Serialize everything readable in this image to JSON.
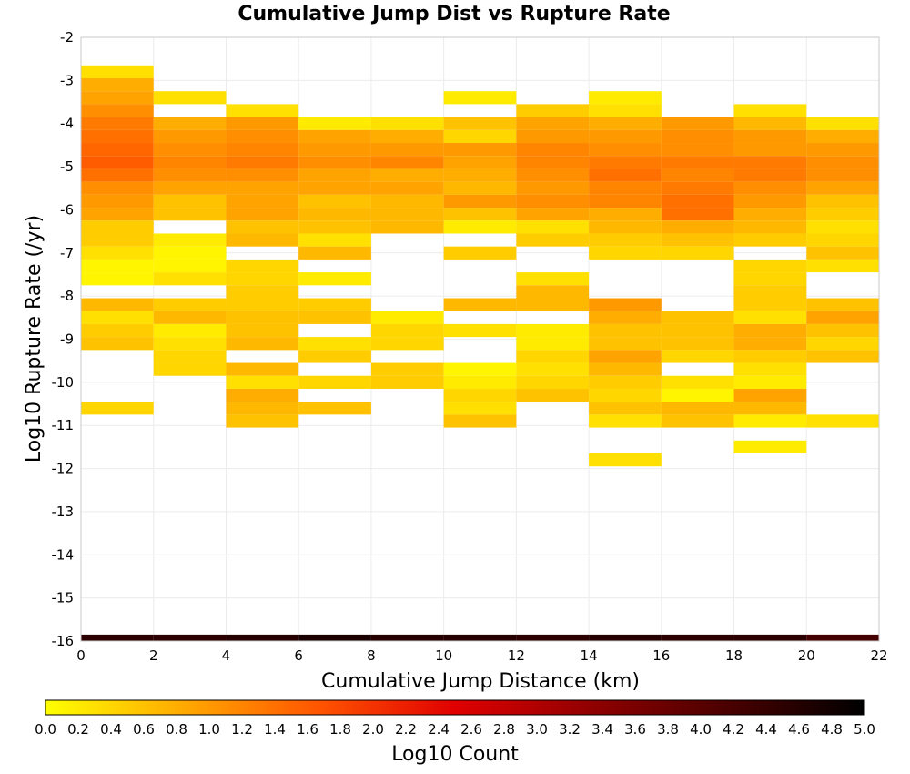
{
  "chart_data": {
    "type": "heatmap",
    "title": "Cumulative Jump Dist vs Rupture Rate",
    "xlabel": "Cumulative Jump Distance (km)",
    "ylabel": "Log10 Rupture Rate (/yr)",
    "colorbar_label": "Log10 Count",
    "xlim": [
      0,
      22
    ],
    "ylim": [
      -16,
      -2
    ],
    "x_ticks": [
      "0",
      "2",
      "4",
      "6",
      "8",
      "10",
      "12",
      "14",
      "16",
      "18",
      "20",
      "22"
    ],
    "y_ticks": [
      "-2",
      "-3",
      "-4",
      "-5",
      "-6",
      "-7",
      "-8",
      "-9",
      "-10",
      "-11",
      "-12",
      "-13",
      "-14",
      "-15",
      "-16"
    ],
    "colorbar_ticks": [
      "0.0",
      "0.2",
      "0.4",
      "0.6",
      "0.8",
      "1.0",
      "1.2",
      "1.4",
      "1.6",
      "1.8",
      "2.0",
      "2.2",
      "2.4",
      "2.6",
      "2.8",
      "3.0",
      "3.2",
      "3.4",
      "3.6",
      "3.8",
      "4.0",
      "4.2",
      "4.4",
      "4.6",
      "4.8",
      "5.0"
    ],
    "colorbar_range": [
      0,
      5
    ],
    "colormap": [
      "#ffff00",
      "#ffaa00",
      "#ff5500",
      "#e00000",
      "#900000",
      "#4a0000",
      "#000000"
    ],
    "grid": true,
    "x_bin_width": 2,
    "y_bin_height": 0.3,
    "columns": [
      {
        "x_start": 0,
        "cells": [
          {
            "y": -2.8,
            "v": 0.3
          },
          {
            "y": -3.1,
            "v": 0.8
          },
          {
            "y": -3.4,
            "v": 0.9
          },
          {
            "y": -3.7,
            "v": 1.1
          },
          {
            "y": -4.0,
            "v": 1.3
          },
          {
            "y": -4.3,
            "v": 1.4
          },
          {
            "y": -4.6,
            "v": 1.5
          },
          {
            "y": -4.9,
            "v": 1.6
          },
          {
            "y": -5.2,
            "v": 1.4
          },
          {
            "y": -5.5,
            "v": 1.1
          },
          {
            "y": -5.8,
            "v": 1.0
          },
          {
            "y": -6.1,
            "v": 0.9
          },
          {
            "y": -6.4,
            "v": 0.5
          },
          {
            "y": -6.7,
            "v": 0.5
          },
          {
            "y": -7.0,
            "v": 0.3
          },
          {
            "y": -7.3,
            "v": 0.1
          },
          {
            "y": -7.6,
            "v": 0.1
          },
          {
            "y": -8.2,
            "v": 0.7
          },
          {
            "y": -8.5,
            "v": 0.3
          },
          {
            "y": -8.8,
            "v": 0.5
          },
          {
            "y": -9.1,
            "v": 0.6
          },
          {
            "y": -10.6,
            "v": 0.4
          }
        ]
      },
      {
        "x_start": 2,
        "cells": [
          {
            "y": -3.4,
            "v": 0.3
          },
          {
            "y": -4.0,
            "v": 0.8
          },
          {
            "y": -4.3,
            "v": 1.0
          },
          {
            "y": -4.6,
            "v": 1.1
          },
          {
            "y": -4.9,
            "v": 1.2
          },
          {
            "y": -5.2,
            "v": 1.1
          },
          {
            "y": -5.5,
            "v": 0.9
          },
          {
            "y": -5.8,
            "v": 0.6
          },
          {
            "y": -6.1,
            "v": 0.6
          },
          {
            "y": -6.7,
            "v": 0.2
          },
          {
            "y": -7.0,
            "v": 0.1
          },
          {
            "y": -7.3,
            "v": 0.1
          },
          {
            "y": -7.6,
            "v": 0.3
          },
          {
            "y": -8.2,
            "v": 0.5
          },
          {
            "y": -8.5,
            "v": 0.7
          },
          {
            "y": -8.8,
            "v": 0.2
          },
          {
            "y": -9.1,
            "v": 0.3
          },
          {
            "y": -9.4,
            "v": 0.4
          },
          {
            "y": -9.7,
            "v": 0.4
          }
        ]
      },
      {
        "x_start": 4,
        "cells": [
          {
            "y": -3.7,
            "v": 0.3
          },
          {
            "y": -4.0,
            "v": 1.0
          },
          {
            "y": -4.3,
            "v": 1.1
          },
          {
            "y": -4.6,
            "v": 1.2
          },
          {
            "y": -4.9,
            "v": 1.3
          },
          {
            "y": -5.2,
            "v": 1.1
          },
          {
            "y": -5.5,
            "v": 0.9
          },
          {
            "y": -5.8,
            "v": 0.9
          },
          {
            "y": -6.1,
            "v": 0.9
          },
          {
            "y": -6.4,
            "v": 0.6
          },
          {
            "y": -6.7,
            "v": 0.7
          },
          {
            "y": -7.3,
            "v": 0.4
          },
          {
            "y": -7.6,
            "v": 0.4
          },
          {
            "y": -7.9,
            "v": 0.5
          },
          {
            "y": -8.2,
            "v": 0.5
          },
          {
            "y": -8.5,
            "v": 0.6
          },
          {
            "y": -8.8,
            "v": 0.6
          },
          {
            "y": -9.1,
            "v": 0.7
          },
          {
            "y": -9.7,
            "v": 0.7
          },
          {
            "y": -10.0,
            "v": 0.3
          },
          {
            "y": -10.3,
            "v": 0.8
          },
          {
            "y": -10.6,
            "v": 0.7
          },
          {
            "y": -10.9,
            "v": 0.6
          }
        ]
      },
      {
        "x_start": 6,
        "cells": [
          {
            "y": -4.0,
            "v": 0.2
          },
          {
            "y": -4.3,
            "v": 0.9
          },
          {
            "y": -4.6,
            "v": 1.0
          },
          {
            "y": -4.9,
            "v": 1.1
          },
          {
            "y": -5.2,
            "v": 0.9
          },
          {
            "y": -5.5,
            "v": 0.9
          },
          {
            "y": -5.8,
            "v": 0.6
          },
          {
            "y": -6.1,
            "v": 0.7
          },
          {
            "y": -6.4,
            "v": 0.6
          },
          {
            "y": -6.7,
            "v": 0.3
          },
          {
            "y": -7.0,
            "v": 0.7
          },
          {
            "y": -7.6,
            "v": 0.2
          },
          {
            "y": -8.2,
            "v": 0.5
          },
          {
            "y": -8.5,
            "v": 0.6
          },
          {
            "y": -9.1,
            "v": 0.3
          },
          {
            "y": -9.4,
            "v": 0.5
          },
          {
            "y": -10.0,
            "v": 0.4
          },
          {
            "y": -10.6,
            "v": 0.6
          }
        ]
      },
      {
        "x_start": 8,
        "cells": [
          {
            "y": -4.0,
            "v": 0.3
          },
          {
            "y": -4.3,
            "v": 0.8
          },
          {
            "y": -4.6,
            "v": 1.0
          },
          {
            "y": -4.9,
            "v": 1.2
          },
          {
            "y": -5.2,
            "v": 0.8
          },
          {
            "y": -5.5,
            "v": 0.9
          },
          {
            "y": -5.8,
            "v": 0.7
          },
          {
            "y": -6.1,
            "v": 0.7
          },
          {
            "y": -6.4,
            "v": 0.7
          },
          {
            "y": -8.5,
            "v": 0.2
          },
          {
            "y": -8.8,
            "v": 0.4
          },
          {
            "y": -9.1,
            "v": 0.4
          },
          {
            "y": -9.7,
            "v": 0.5
          },
          {
            "y": -10.0,
            "v": 0.5
          }
        ]
      },
      {
        "x_start": 10,
        "cells": [
          {
            "y": -3.4,
            "v": 0.2
          },
          {
            "y": -4.0,
            "v": 0.6
          },
          {
            "y": -4.3,
            "v": 0.4
          },
          {
            "y": -4.6,
            "v": 1.0
          },
          {
            "y": -4.9,
            "v": 0.9
          },
          {
            "y": -5.2,
            "v": 0.8
          },
          {
            "y": -5.5,
            "v": 0.7
          },
          {
            "y": -5.8,
            "v": 1.0
          },
          {
            "y": -6.1,
            "v": 0.6
          },
          {
            "y": -6.4,
            "v": 0.2
          },
          {
            "y": -7.0,
            "v": 0.5
          },
          {
            "y": -8.2,
            "v": 0.7
          },
          {
            "y": -8.8,
            "v": 0.3
          },
          {
            "y": -9.7,
            "v": 0.1
          },
          {
            "y": -10.0,
            "v": 0.2
          },
          {
            "y": -10.3,
            "v": 0.4
          },
          {
            "y": -10.6,
            "v": 0.3
          },
          {
            "y": -10.9,
            "v": 0.6
          }
        ]
      },
      {
        "x_start": 12,
        "cells": [
          {
            "y": -3.7,
            "v": 0.5
          },
          {
            "y": -4.0,
            "v": 0.9
          },
          {
            "y": -4.3,
            "v": 1.0
          },
          {
            "y": -4.6,
            "v": 1.2
          },
          {
            "y": -4.9,
            "v": 1.2
          },
          {
            "y": -5.2,
            "v": 1.1
          },
          {
            "y": -5.5,
            "v": 1.0
          },
          {
            "y": -5.8,
            "v": 1.1
          },
          {
            "y": -6.1,
            "v": 0.9
          },
          {
            "y": -6.4,
            "v": 0.3
          },
          {
            "y": -6.7,
            "v": 0.5
          },
          {
            "y": -7.6,
            "v": 0.3
          },
          {
            "y": -7.9,
            "v": 0.7
          },
          {
            "y": -8.2,
            "v": 0.7
          },
          {
            "y": -8.8,
            "v": 0.2
          },
          {
            "y": -9.1,
            "v": 0.2
          },
          {
            "y": -9.4,
            "v": 0.4
          },
          {
            "y": -9.7,
            "v": 0.3
          },
          {
            "y": -10.0,
            "v": 0.4
          },
          {
            "y": -10.3,
            "v": 0.6
          }
        ]
      },
      {
        "x_start": 14,
        "cells": [
          {
            "y": -3.4,
            "v": 0.2
          },
          {
            "y": -3.7,
            "v": 0.3
          },
          {
            "y": -4.0,
            "v": 0.8
          },
          {
            "y": -4.3,
            "v": 1.0
          },
          {
            "y": -4.6,
            "v": 1.1
          },
          {
            "y": -4.9,
            "v": 1.3
          },
          {
            "y": -5.2,
            "v": 1.4
          },
          {
            "y": -5.5,
            "v": 1.2
          },
          {
            "y": -5.8,
            "v": 1.2
          },
          {
            "y": -6.1,
            "v": 0.8
          },
          {
            "y": -6.4,
            "v": 0.7
          },
          {
            "y": -6.7,
            "v": 0.5
          },
          {
            "y": -7.0,
            "v": 0.4
          },
          {
            "y": -8.2,
            "v": 1.0
          },
          {
            "y": -8.5,
            "v": 0.8
          },
          {
            "y": -8.8,
            "v": 0.6
          },
          {
            "y": -9.1,
            "v": 0.6
          },
          {
            "y": -9.4,
            "v": 0.9
          },
          {
            "y": -9.7,
            "v": 0.7
          },
          {
            "y": -10.0,
            "v": 0.5
          },
          {
            "y": -10.3,
            "v": 0.4
          },
          {
            "y": -10.6,
            "v": 0.6
          },
          {
            "y": -10.9,
            "v": 0.3
          },
          {
            "y": -11.8,
            "v": 0.3
          }
        ]
      },
      {
        "x_start": 16,
        "cells": [
          {
            "y": -4.0,
            "v": 1.0
          },
          {
            "y": -4.3,
            "v": 1.1
          },
          {
            "y": -4.6,
            "v": 1.1
          },
          {
            "y": -4.9,
            "v": 1.3
          },
          {
            "y": -5.2,
            "v": 1.2
          },
          {
            "y": -5.5,
            "v": 1.3
          },
          {
            "y": -5.8,
            "v": 1.4
          },
          {
            "y": -6.1,
            "v": 1.4
          },
          {
            "y": -6.4,
            "v": 0.8
          },
          {
            "y": -6.7,
            "v": 0.6
          },
          {
            "y": -7.0,
            "v": 0.4
          },
          {
            "y": -8.5,
            "v": 0.6
          },
          {
            "y": -8.8,
            "v": 0.6
          },
          {
            "y": -9.1,
            "v": 0.6
          },
          {
            "y": -9.4,
            "v": 0.4
          },
          {
            "y": -10.0,
            "v": 0.3
          },
          {
            "y": -10.3,
            "v": 0.1
          },
          {
            "y": -10.6,
            "v": 0.7
          },
          {
            "y": -10.9,
            "v": 0.6
          }
        ]
      },
      {
        "x_start": 18,
        "cells": [
          {
            "y": -3.7,
            "v": 0.3
          },
          {
            "y": -4.0,
            "v": 0.7
          },
          {
            "y": -4.3,
            "v": 1.0
          },
          {
            "y": -4.6,
            "v": 1.0
          },
          {
            "y": -4.9,
            "v": 1.3
          },
          {
            "y": -5.2,
            "v": 1.3
          },
          {
            "y": -5.5,
            "v": 1.1
          },
          {
            "y": -5.8,
            "v": 1.0
          },
          {
            "y": -6.1,
            "v": 0.8
          },
          {
            "y": -6.4,
            "v": 0.7
          },
          {
            "y": -6.7,
            "v": 0.5
          },
          {
            "y": -7.3,
            "v": 0.4
          },
          {
            "y": -7.6,
            "v": 0.4
          },
          {
            "y": -7.9,
            "v": 0.5
          },
          {
            "y": -8.2,
            "v": 0.5
          },
          {
            "y": -8.5,
            "v": 0.3
          },
          {
            "y": -8.8,
            "v": 0.8
          },
          {
            "y": -9.1,
            "v": 0.8
          },
          {
            "y": -9.4,
            "v": 0.5
          },
          {
            "y": -9.7,
            "v": 0.3
          },
          {
            "y": -10.0,
            "v": 0.2
          },
          {
            "y": -10.3,
            "v": 0.9
          },
          {
            "y": -10.6,
            "v": 0.7
          },
          {
            "y": -10.9,
            "v": 0.2
          },
          {
            "y": -11.5,
            "v": 0.2
          }
        ]
      },
      {
        "x_start": 20,
        "cells": [
          {
            "y": -4.0,
            "v": 0.3
          },
          {
            "y": -4.3,
            "v": 0.8
          },
          {
            "y": -4.6,
            "v": 1.0
          },
          {
            "y": -4.9,
            "v": 1.1
          },
          {
            "y": -5.2,
            "v": 1.1
          },
          {
            "y": -5.5,
            "v": 0.9
          },
          {
            "y": -5.8,
            "v": 0.6
          },
          {
            "y": -6.1,
            "v": 0.5
          },
          {
            "y": -6.4,
            "v": 0.3
          },
          {
            "y": -6.7,
            "v": 0.4
          },
          {
            "y": -7.0,
            "v": 0.6
          },
          {
            "y": -7.3,
            "v": 0.3
          },
          {
            "y": -8.2,
            "v": 0.6
          },
          {
            "y": -8.5,
            "v": 0.9
          },
          {
            "y": -8.8,
            "v": 0.6
          },
          {
            "y": -9.1,
            "v": 0.4
          },
          {
            "y": -9.4,
            "v": 0.6
          },
          {
            "y": -10.9,
            "v": 0.3
          }
        ]
      }
    ],
    "bottom_row": {
      "y": -16.0,
      "values": [
        4.5,
        4.5,
        4.6,
        4.7,
        4.6,
        4.6,
        4.5,
        4.6,
        4.5,
        4.5,
        4.2
      ]
    }
  }
}
